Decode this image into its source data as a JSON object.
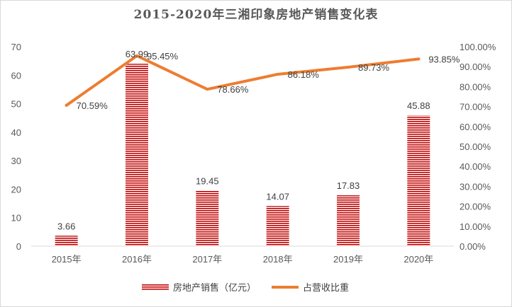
{
  "chart_data": {
    "type": "bar+line",
    "title": "2015-2020年三湘印象房地产销售变化表",
    "categories": [
      "2015年",
      "2016年",
      "2017年",
      "2018年",
      "2019年",
      "2020年"
    ],
    "series": [
      {
        "name": "房地产销售（亿元）",
        "type": "bar",
        "axis": "left",
        "values": [
          3.66,
          63.99,
          19.45,
          14.07,
          17.83,
          45.88
        ],
        "labels": [
          "3.66",
          "63.99",
          "19.45",
          "14.07",
          "17.83",
          "45.88"
        ],
        "color": "#c00000"
      },
      {
        "name": "占营收比重",
        "type": "line",
        "axis": "right",
        "values": [
          70.59,
          95.45,
          78.66,
          86.18,
          89.73,
          93.85
        ],
        "labels": [
          "70.59%",
          "95.45%",
          "78.66%",
          "86.18%",
          "89.73%",
          "93.85%"
        ],
        "color": "#ed7d31"
      }
    ],
    "y_left": {
      "range": [
        0,
        70
      ],
      "ticks": [
        "0",
        "10",
        "20",
        "30",
        "40",
        "50",
        "60",
        "70"
      ]
    },
    "y_right": {
      "range": [
        0,
        100
      ],
      "ticks": [
        "0.00%",
        "10.00%",
        "20.00%",
        "30.00%",
        "40.00%",
        "50.00%",
        "60.00%",
        "70.00%",
        "80.00%",
        "90.00%",
        "100.00%"
      ]
    },
    "grid": false,
    "legend": "bottom"
  }
}
